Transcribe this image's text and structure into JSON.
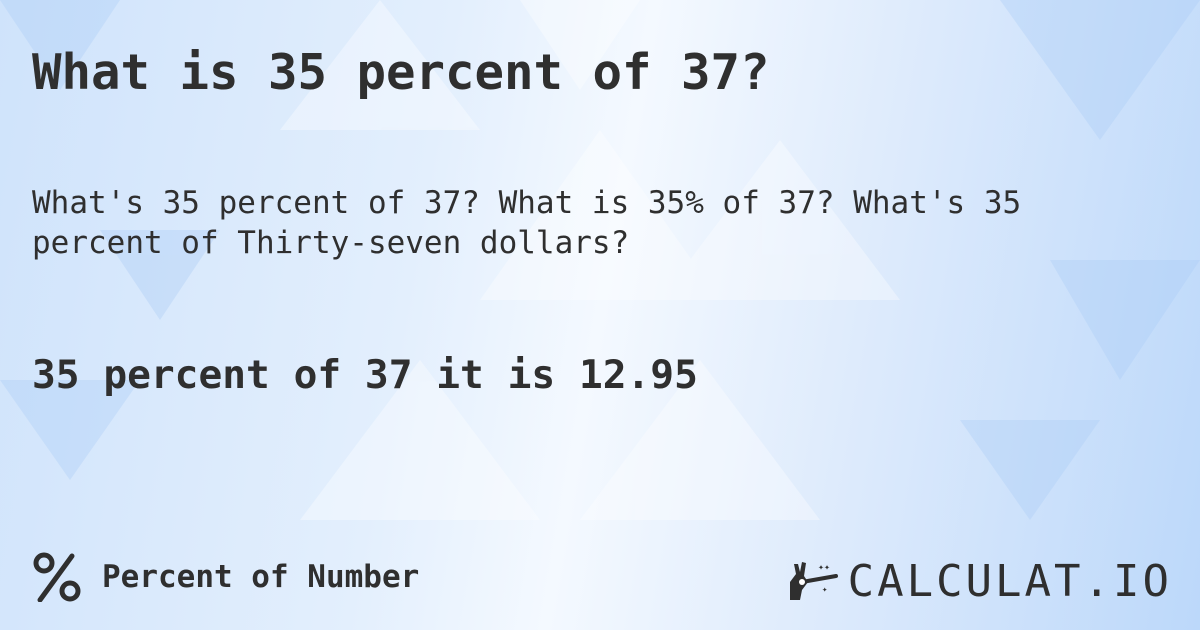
{
  "title": "What is 35 percent of 37?",
  "question": "What's 35 percent of 37? What is 35% of 37? What's 35 percent of Thirty-seven dollars?",
  "result": "35 percent of 37 it is 12.95",
  "footer": {
    "category_icon": "percent-icon",
    "category": "Percent of Number"
  },
  "logo": {
    "text": "CALCULAT.IO",
    "icon": "magic-wand-hand-icon"
  },
  "colors": {
    "text": "#2f2f2f",
    "background": "#d6e7fc"
  }
}
